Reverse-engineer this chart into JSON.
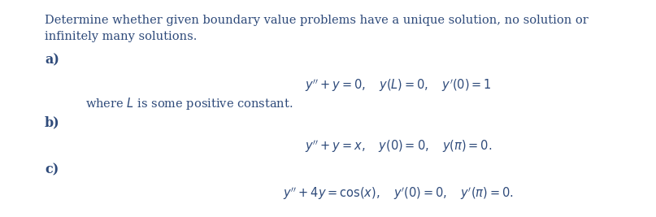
{
  "background_color": "#ffffff",
  "text_color": "#2e4a7a",
  "fig_width": 8.07,
  "fig_height": 2.67,
  "dpi": 100,
  "intro_line1": "Determine whether given boundary value problems have a unique solution, no solution or",
  "intro_line2": "infinitely many solutions.",
  "label_a": "a)",
  "label_b": "b)",
  "label_c": "c)",
  "eq_a": "$y'' + y = 0, \\quad y(L) = 0, \\quad y'(0) = 1$",
  "note_a": "where $L$ is some positive constant.",
  "eq_b": "$y'' + y = x, \\quad y(0) = 0, \\quad y(\\pi) = 0.$",
  "eq_c": "$y'' + 4y = \\cos(x), \\quad y'(0) = 0, \\quad y'(\\pi) = 0.$",
  "font_size_text": 10.5,
  "font_size_eq": 10.5,
  "font_size_label": 11.5
}
